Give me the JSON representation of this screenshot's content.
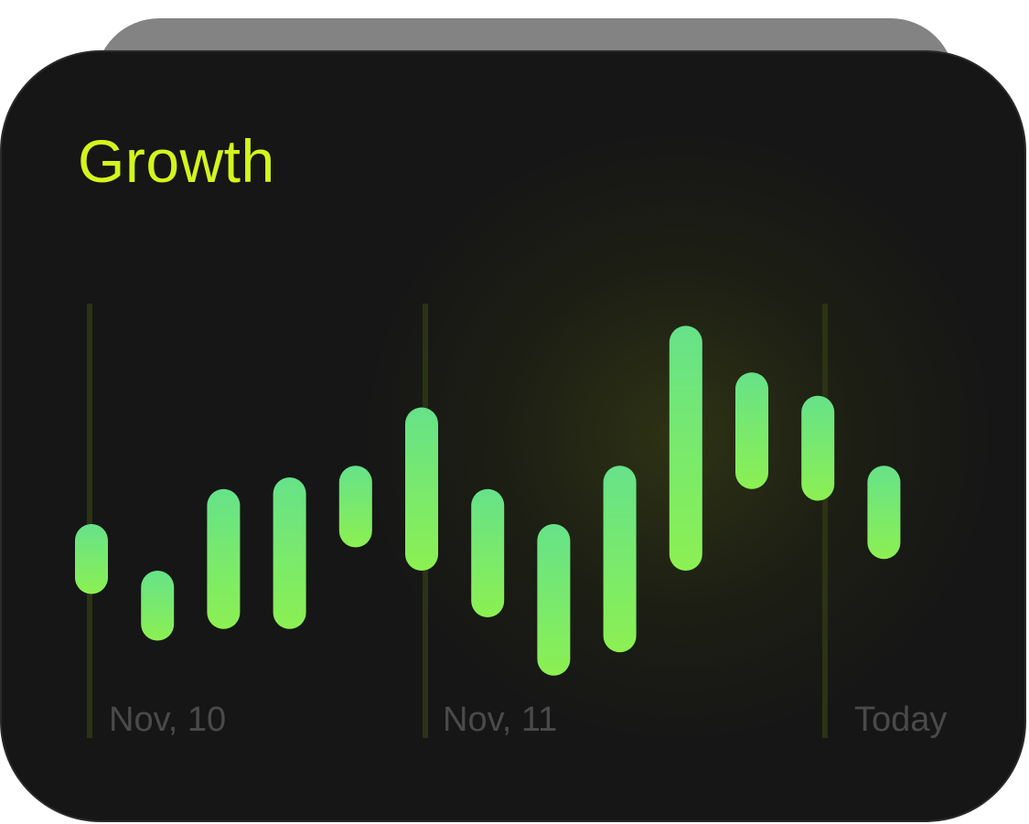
{
  "title": "Growth",
  "chart_data": {
    "type": "bar",
    "title": "Growth",
    "bars": [
      {
        "low": 10,
        "high": 16
      },
      {
        "low": 6,
        "high": 12
      },
      {
        "low": 7,
        "high": 19
      },
      {
        "low": 7,
        "high": 20
      },
      {
        "low": 14,
        "high": 21
      },
      {
        "low": 12,
        "high": 26
      },
      {
        "low": 8,
        "high": 19
      },
      {
        "low": 3,
        "high": 16
      },
      {
        "low": 5,
        "high": 21
      },
      {
        "low": 12,
        "high": 33
      },
      {
        "low": 19,
        "high": 29
      },
      {
        "low": 18,
        "high": 27
      },
      {
        "low": 13,
        "high": 21
      }
    ],
    "x_labels": [
      "Nov, 10",
      "Nov, 11",
      "Today"
    ],
    "ylim": [
      0,
      40
    ],
    "grid": false,
    "colors": {
      "title": "#d4f51c",
      "bar_top": "#66e289",
      "bar_bottom": "#8cf052",
      "marker_line": "#2b3314",
      "label": "#4a4a4a"
    }
  }
}
